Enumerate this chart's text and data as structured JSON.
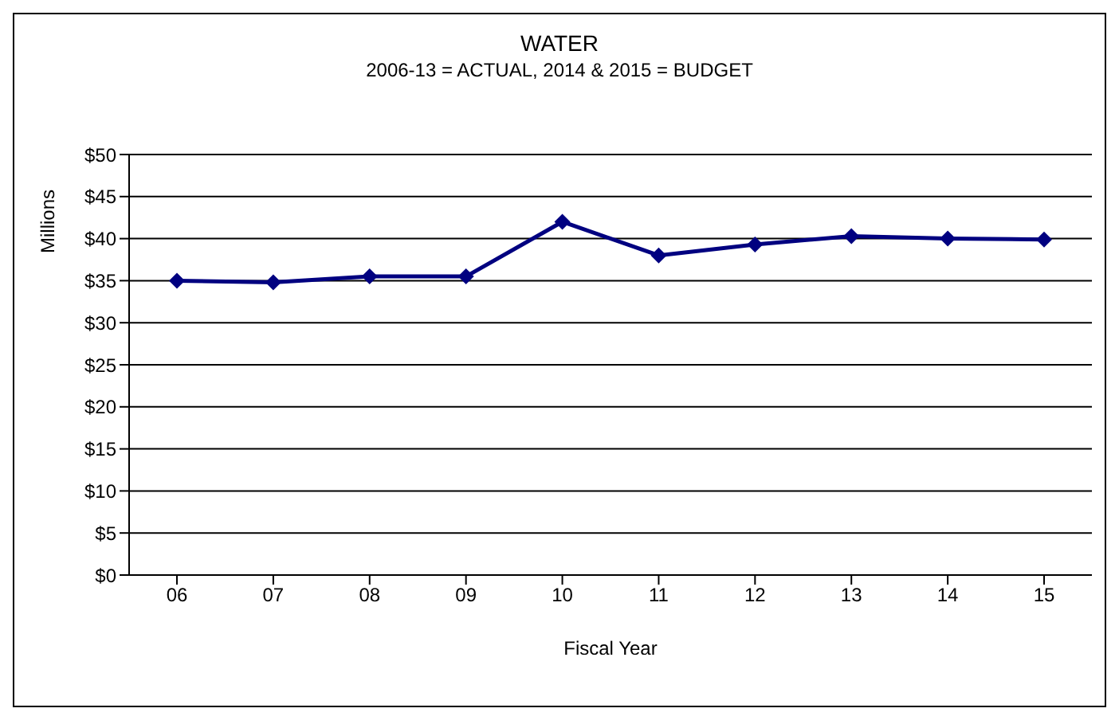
{
  "chart_data": {
    "type": "line",
    "title": "WATER",
    "subtitle": "2006-13 = ACTUAL, 2014 & 2015 = BUDGET",
    "xlabel": "Fiscal Year",
    "ylabel": "Millions",
    "categories": [
      "06",
      "07",
      "08",
      "09",
      "10",
      "11",
      "12",
      "13",
      "14",
      "15"
    ],
    "series": [
      {
        "color": "#000080",
        "values": [
          35.0,
          34.8,
          35.5,
          35.5,
          42.0,
          38.0,
          39.3,
          40.3,
          40.0,
          39.9
        ]
      }
    ],
    "ylim": [
      0,
      50
    ],
    "yticks": [
      {
        "value": 0,
        "label": "$0"
      },
      {
        "value": 5,
        "label": "$5"
      },
      {
        "value": 10,
        "label": "$10"
      },
      {
        "value": 15,
        "label": "$15"
      },
      {
        "value": 20,
        "label": "$20"
      },
      {
        "value": 25,
        "label": "$25"
      },
      {
        "value": 30,
        "label": "$30"
      },
      {
        "value": 35,
        "label": "$35"
      },
      {
        "value": 40,
        "label": "$40"
      },
      {
        "value": 45,
        "label": "$45"
      },
      {
        "value": 50,
        "label": "$50"
      }
    ],
    "grid": "y",
    "marker": "diamond",
    "legend": false
  }
}
